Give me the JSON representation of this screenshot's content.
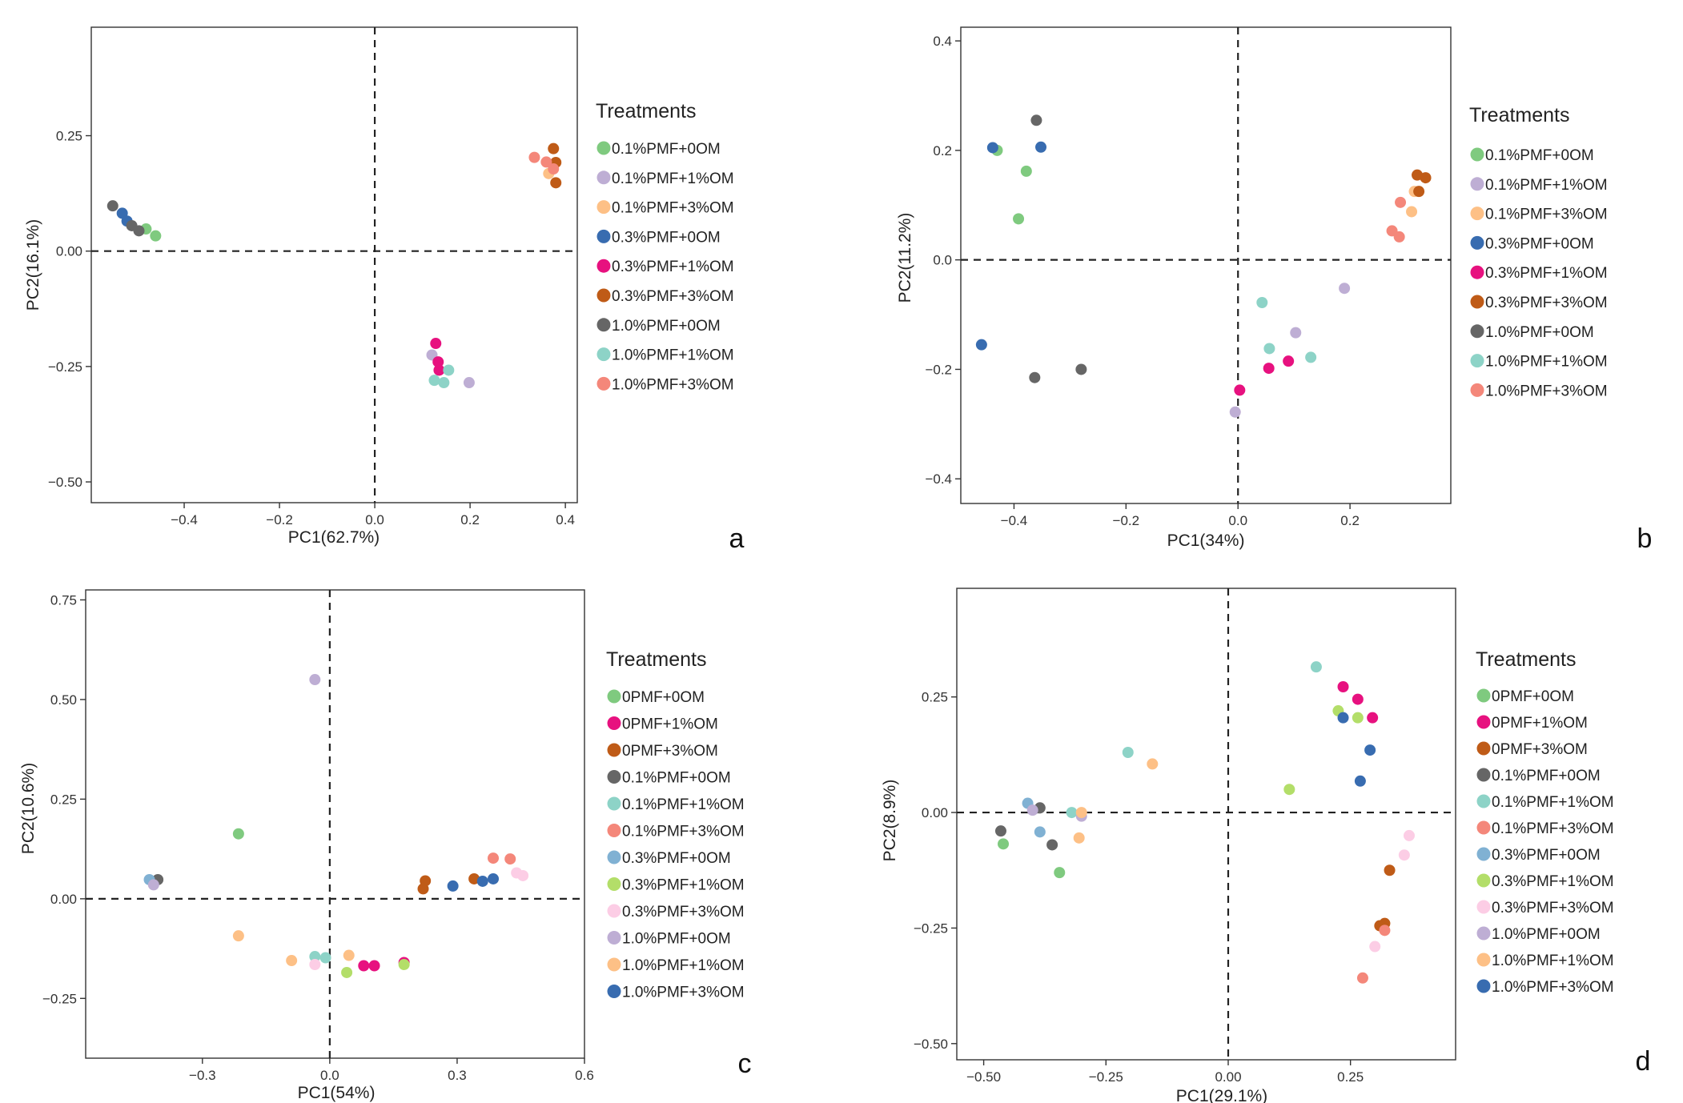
{
  "colors": {
    "green": "#7fca7f",
    "lavender": "#beaed4",
    "peach": "#fdc086",
    "blue": "#386cb0",
    "magenta": "#e7117f",
    "orange": "#bf5b17",
    "gray": "#666666",
    "teal": "#8dd3c7",
    "salmon": "#f4877a",
    "lightblue": "#80b1d3",
    "yellowgreen": "#b3de69",
    "pink": "#fccde5"
  },
  "chart_data": [
    {
      "type": "scatter",
      "panel_label": "a",
      "xlabel": "PC1(62.7%)",
      "ylabel": "PC2(16.1%)",
      "xlim": [
        -0.595,
        0.425
      ],
      "ylim": [
        -0.545,
        0.485
      ],
      "xticks": [
        -0.4,
        -0.2,
        0.0,
        0.2,
        0.4
      ],
      "xtick_labels": [
        "−0.4",
        "−0.2",
        "0.0",
        "0.2",
        "0.4"
      ],
      "yticks": [
        -0.5,
        -0.25,
        0.0,
        0.25
      ],
      "ytick_labels": [
        "−0.50",
        "−0.25",
        "0.00",
        "0.25"
      ],
      "legend_title": "Treatments",
      "series": [
        {
          "name": "0.1%PMF+0OM",
          "color": "#7fca7f",
          "points": [
            [
              -0.48,
              0.048
            ],
            [
              -0.46,
              0.033
            ]
          ]
        },
        {
          "name": "0.1%PMF+1%OM",
          "color": "#beaed4",
          "points": [
            [
              0.12,
              -0.225
            ],
            [
              0.198,
              -0.285
            ]
          ]
        },
        {
          "name": "0.1%PMF+3%OM",
          "color": "#fdc086",
          "points": [
            [
              0.365,
              0.168
            ]
          ]
        },
        {
          "name": "0.3%PMF+0OM",
          "color": "#386cb0",
          "points": [
            [
              -0.53,
              0.082
            ],
            [
              -0.52,
              0.065
            ]
          ]
        },
        {
          "name": "0.3%PMF+1%OM",
          "color": "#e7117f",
          "points": [
            [
              0.128,
              -0.2
            ],
            [
              0.133,
              -0.24
            ],
            [
              0.135,
              -0.258
            ]
          ]
        },
        {
          "name": "0.3%PMF+3%OM",
          "color": "#bf5b17",
          "points": [
            [
              0.375,
              0.222
            ],
            [
              0.38,
              0.192
            ],
            [
              0.38,
              0.148
            ]
          ]
        },
        {
          "name": "1.0%PMF+0OM",
          "color": "#666666",
          "points": [
            [
              -0.55,
              0.098
            ],
            [
              -0.51,
              0.055
            ],
            [
              -0.495,
              0.044
            ]
          ]
        },
        {
          "name": "1.0%PMF+1%OM",
          "color": "#8dd3c7",
          "points": [
            [
              0.125,
              -0.28
            ],
            [
              0.145,
              -0.285
            ],
            [
              0.155,
              -0.258
            ]
          ]
        },
        {
          "name": "1.0%PMF+3%OM",
          "color": "#f4877a",
          "points": [
            [
              0.335,
              0.203
            ],
            [
              0.36,
              0.193
            ],
            [
              0.375,
              0.178
            ]
          ]
        }
      ]
    },
    {
      "type": "scatter",
      "panel_label": "b",
      "xlabel": "PC1(34%)",
      "ylabel": "PC2(11.2%)",
      "xlim": [
        -0.495,
        0.38
      ],
      "ylim": [
        -0.445,
        0.425
      ],
      "xticks": [
        -0.4,
        -0.2,
        0.0,
        0.2
      ],
      "xtick_labels": [
        "−0.4",
        "−0.2",
        "0.0",
        "0.2"
      ],
      "yticks": [
        -0.4,
        -0.2,
        0.0,
        0.2,
        0.4
      ],
      "ytick_labels": [
        "−0.4",
        "−0.2",
        "0.0",
        "0.2",
        "0.4"
      ],
      "legend_title": "Treatments",
      "series": [
        {
          "name": "0.1%PMF+0OM",
          "color": "#7fca7f",
          "points": [
            [
              -0.43,
              0.2
            ],
            [
              -0.378,
              0.162
            ],
            [
              -0.392,
              0.075
            ]
          ]
        },
        {
          "name": "0.1%PMF+1%OM",
          "color": "#beaed4",
          "points": [
            [
              0.19,
              -0.052
            ],
            [
              0.103,
              -0.133
            ],
            [
              -0.005,
              -0.278
            ]
          ]
        },
        {
          "name": "0.1%PMF+3%OM",
          "color": "#fdc086",
          "points": [
            [
              0.315,
              0.125
            ],
            [
              0.31,
              0.088
            ]
          ]
        },
        {
          "name": "0.3%PMF+0OM",
          "color": "#386cb0",
          "points": [
            [
              -0.438,
              0.205
            ],
            [
              -0.352,
              0.206
            ],
            [
              -0.458,
              -0.155
            ]
          ]
        },
        {
          "name": "0.3%PMF+1%OM",
          "color": "#e7117f",
          "points": [
            [
              0.09,
              -0.185
            ],
            [
              0.055,
              -0.198
            ],
            [
              0.003,
              -0.238
            ]
          ]
        },
        {
          "name": "0.3%PMF+3%OM",
          "color": "#bf5b17",
          "points": [
            [
              0.32,
              0.155
            ],
            [
              0.335,
              0.15
            ],
            [
              0.323,
              0.125
            ]
          ]
        },
        {
          "name": "1.0%PMF+0OM",
          "color": "#666666",
          "points": [
            [
              -0.36,
              0.255
            ],
            [
              -0.363,
              -0.215
            ],
            [
              -0.28,
              -0.2
            ]
          ]
        },
        {
          "name": "1.0%PMF+1%OM",
          "color": "#8dd3c7",
          "points": [
            [
              0.043,
              -0.078
            ],
            [
              0.056,
              -0.162
            ],
            [
              0.13,
              -0.178
            ]
          ]
        },
        {
          "name": "1.0%PMF+3%OM",
          "color": "#f4877a",
          "points": [
            [
              0.29,
              0.105
            ],
            [
              0.275,
              0.053
            ],
            [
              0.288,
              0.042
            ]
          ]
        }
      ]
    },
    {
      "type": "scatter",
      "panel_label": "c",
      "xlabel": "PC1(54%)",
      "ylabel": "PC2(10.6%)",
      "xlim": [
        -0.575,
        0.6
      ],
      "ylim": [
        -0.4,
        0.775
      ],
      "xticks": [
        -0.3,
        0.0,
        0.3,
        0.6
      ],
      "xtick_labels": [
        "−0.3",
        "0.0",
        "0.3",
        "0.6"
      ],
      "yticks": [
        -0.25,
        0.0,
        0.25,
        0.5,
        0.75
      ],
      "ytick_labels": [
        "−0.25",
        "0.00",
        "0.25",
        "0.50",
        "0.75"
      ],
      "legend_title": "Treatments",
      "series": [
        {
          "name": "0PMF+0OM",
          "color": "#7fca7f",
          "points": [
            [
              -0.215,
              0.163
            ]
          ]
        },
        {
          "name": "0PMF+1%OM",
          "color": "#e7117f",
          "points": [
            [
              0.08,
              -0.168
            ],
            [
              0.105,
              -0.168
            ],
            [
              0.175,
              -0.16
            ]
          ]
        },
        {
          "name": "0PMF+3%OM",
          "color": "#bf5b17",
          "points": [
            [
              0.22,
              0.025
            ],
            [
              0.225,
              0.045
            ],
            [
              0.34,
              0.05
            ]
          ]
        },
        {
          "name": "0.1%PMF+0OM",
          "color": "#666666",
          "points": [
            [
              -0.405,
              0.048
            ]
          ]
        },
        {
          "name": "0.1%PMF+1%OM",
          "color": "#8dd3c7",
          "points": [
            [
              -0.035,
              -0.145
            ],
            [
              -0.01,
              -0.148
            ]
          ]
        },
        {
          "name": "0.1%PMF+3%OM",
          "color": "#f4877a",
          "points": [
            [
              0.385,
              0.102
            ],
            [
              0.425,
              0.1
            ]
          ]
        },
        {
          "name": "0.3%PMF+0OM",
          "color": "#80b1d3",
          "points": [
            [
              -0.425,
              0.048
            ]
          ]
        },
        {
          "name": "0.3%PMF+1%OM",
          "color": "#b3de69",
          "points": [
            [
              0.04,
              -0.185
            ],
            [
              0.175,
              -0.165
            ]
          ]
        },
        {
          "name": "0.3%PMF+3%OM",
          "color": "#fccde5",
          "points": [
            [
              -0.035,
              -0.165
            ],
            [
              0.44,
              0.065
            ],
            [
              0.455,
              0.058
            ]
          ]
        },
        {
          "name": "1.0%PMF+0OM",
          "color": "#beaed4",
          "points": [
            [
              -0.035,
              0.55
            ],
            [
              -0.415,
              0.035
            ]
          ]
        },
        {
          "name": "1.0%PMF+1%OM",
          "color": "#fdc086",
          "points": [
            [
              -0.215,
              -0.093
            ],
            [
              -0.09,
              -0.155
            ],
            [
              0.045,
              -0.142
            ]
          ]
        },
        {
          "name": "1.0%PMF+3%OM",
          "color": "#386cb0",
          "points": [
            [
              0.29,
              0.032
            ],
            [
              0.36,
              0.044
            ],
            [
              0.385,
              0.05
            ]
          ]
        }
      ]
    },
    {
      "type": "scatter",
      "panel_label": "d",
      "xlabel": "PC1(29.1%)",
      "ylabel": "PC2(8.9%)",
      "xlim": [
        -0.555,
        0.465
      ],
      "ylim": [
        -0.535,
        0.485
      ],
      "xticks": [
        -0.5,
        -0.25,
        0.0,
        0.25
      ],
      "xtick_labels": [
        "−0.50",
        "−0.25",
        "0.00",
        "0.25"
      ],
      "yticks": [
        -0.5,
        -0.25,
        0.0,
        0.25
      ],
      "ytick_labels": [
        "−0.50",
        "−0.25",
        "0.00",
        "0.25"
      ],
      "legend_title": "Treatments",
      "series": [
        {
          "name": "0PMF+0OM",
          "color": "#7fca7f",
          "points": [
            [
              -0.46,
              -0.068
            ],
            [
              -0.345,
              -0.13
            ]
          ]
        },
        {
          "name": "0PMF+1%OM",
          "color": "#e7117f",
          "points": [
            [
              0.235,
              0.272
            ],
            [
              0.265,
              0.245
            ],
            [
              0.295,
              0.205
            ]
          ]
        },
        {
          "name": "0PMF+3%OM",
          "color": "#bf5b17",
          "points": [
            [
              0.33,
              -0.125
            ],
            [
              0.31,
              -0.245
            ],
            [
              0.32,
              -0.24
            ]
          ]
        },
        {
          "name": "0.1%PMF+0OM",
          "color": "#666666",
          "points": [
            [
              -0.465,
              -0.04
            ],
            [
              -0.36,
              -0.07
            ],
            [
              -0.385,
              0.01
            ]
          ]
        },
        {
          "name": "0.1%PMF+1%OM",
          "color": "#8dd3c7",
          "points": [
            [
              0.18,
              0.315
            ],
            [
              -0.205,
              0.13
            ],
            [
              -0.32,
              0.0
            ]
          ]
        },
        {
          "name": "0.1%PMF+3%OM",
          "color": "#f4877a",
          "points": [
            [
              0.32,
              -0.255
            ],
            [
              0.275,
              -0.358
            ]
          ]
        },
        {
          "name": "0.3%PMF+0OM",
          "color": "#80b1d3",
          "points": [
            [
              -0.41,
              0.02
            ],
            [
              -0.385,
              -0.042
            ]
          ]
        },
        {
          "name": "0.3%PMF+1%OM",
          "color": "#b3de69",
          "points": [
            [
              0.225,
              0.22
            ],
            [
              0.265,
              0.205
            ],
            [
              0.125,
              0.05
            ]
          ]
        },
        {
          "name": "0.3%PMF+3%OM",
          "color": "#fccde5",
          "points": [
            [
              0.37,
              -0.05
            ],
            [
              0.36,
              -0.092
            ],
            [
              0.3,
              -0.29
            ]
          ]
        },
        {
          "name": "1.0%PMF+0OM",
          "color": "#beaed4",
          "points": [
            [
              -0.4,
              0.005
            ],
            [
              -0.3,
              -0.008
            ]
          ]
        },
        {
          "name": "1.0%PMF+1%OM",
          "color": "#fdc086",
          "points": [
            [
              -0.155,
              0.105
            ],
            [
              -0.3,
              0.0
            ],
            [
              -0.305,
              -0.055
            ]
          ]
        },
        {
          "name": "1.0%PMF+3%OM",
          "color": "#386cb0",
          "points": [
            [
              0.235,
              0.205
            ],
            [
              0.29,
              0.135
            ],
            [
              0.27,
              0.068
            ]
          ]
        }
      ]
    }
  ]
}
